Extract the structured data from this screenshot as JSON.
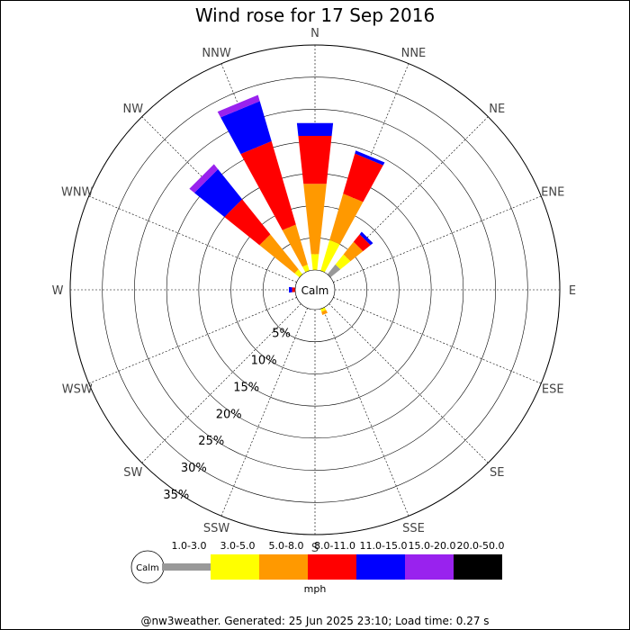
{
  "chart_data": {
    "type": "wind-rose",
    "title": "Wind rose for 17 Sep 2016",
    "directions": [
      "N",
      "NNE",
      "NE",
      "ENE",
      "E",
      "ESE",
      "SE",
      "SSE",
      "S",
      "SSW",
      "SW",
      "WSW",
      "W",
      "WNW",
      "NW",
      "NNW"
    ],
    "radial_ticks": [
      "5%",
      "10%",
      "15%",
      "20%",
      "25%",
      "30%",
      "35%"
    ],
    "radial_max": 35,
    "calm_label": "Calm",
    "speed_unit": "mph",
    "bins": [
      {
        "label": "1.0-3.0",
        "color": "#999999"
      },
      {
        "label": "3.0-5.0",
        "color": "#ffff00"
      },
      {
        "label": "5.0-8.0",
        "color": "#ff9900"
      },
      {
        "label": "8.0-11.0",
        "color": "#ff0000"
      },
      {
        "label": "11.0-15.0",
        "color": "#0000ff"
      },
      {
        "label": "15.0-20.0",
        "color": "#9922ee"
      },
      {
        "label": "20.0-50.0",
        "color": "#000000"
      }
    ],
    "series": [
      {
        "direction": "N",
        "values": [
          0,
          2.5,
          11,
          7.5,
          2,
          0,
          0
        ]
      },
      {
        "direction": "NNE",
        "values": [
          0,
          5,
          7.5,
          6.5,
          0.5,
          0,
          0
        ]
      },
      {
        "direction": "NE",
        "values": [
          2,
          2,
          2.5,
          1.5,
          0.5,
          0,
          0
        ]
      },
      {
        "direction": "ENE",
        "values": [
          0,
          0,
          0,
          0,
          0,
          0,
          0
        ]
      },
      {
        "direction": "E",
        "values": [
          0,
          0,
          0,
          0,
          0,
          0,
          0
        ]
      },
      {
        "direction": "ESE",
        "values": [
          0,
          0,
          0,
          0,
          0,
          0,
          0
        ]
      },
      {
        "direction": "SE",
        "values": [
          0,
          0,
          0,
          0,
          0,
          0,
          0
        ]
      },
      {
        "direction": "SSE",
        "values": [
          0,
          0.5,
          0.5,
          0,
          0,
          0,
          0
        ]
      },
      {
        "direction": "S",
        "values": [
          0,
          0,
          0,
          0,
          0,
          0,
          0
        ]
      },
      {
        "direction": "SSW",
        "values": [
          0,
          0,
          0,
          0,
          0,
          0,
          0
        ]
      },
      {
        "direction": "SW",
        "values": [
          0,
          0,
          0,
          0,
          0,
          0,
          0
        ]
      },
      {
        "direction": "WSW",
        "values": [
          0,
          0,
          0,
          0,
          0,
          0,
          0
        ]
      },
      {
        "direction": "W",
        "values": [
          0,
          0,
          0,
          0.5,
          0.5,
          0,
          0
        ]
      },
      {
        "direction": "WNW",
        "values": [
          0,
          0,
          0,
          0,
          0,
          0,
          0
        ]
      },
      {
        "direction": "NW",
        "values": [
          0,
          1,
          7,
          7,
          6,
          1,
          0
        ]
      },
      {
        "direction": "NNW",
        "values": [
          0,
          1,
          6.5,
          13.5,
          6.5,
          1,
          0
        ]
      }
    ],
    "grid": true
  },
  "footer": "@nw3weather. Generated: 25 Jun 2025 23:10; Load time: 0.27 s"
}
